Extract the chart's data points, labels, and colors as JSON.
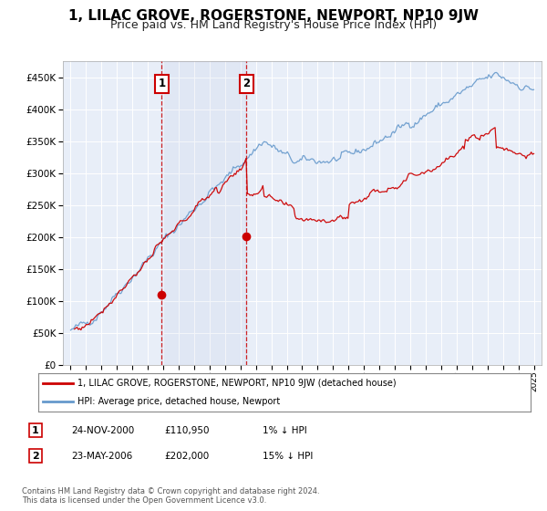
{
  "title": "1, LILAC GROVE, ROGERSTONE, NEWPORT, NP10 9JW",
  "subtitle": "Price paid vs. HM Land Registry's House Price Index (HPI)",
  "title_fontsize": 11,
  "subtitle_fontsize": 9,
  "bg_color": "#ffffff",
  "plot_bg_color": "#e8eef8",
  "grid_color": "#ffffff",
  "hpi_color": "#6699cc",
  "price_color": "#cc0000",
  "purchase1_date_num": 2000.9,
  "purchase2_date_num": 2006.38,
  "purchase1_price": 110950,
  "purchase2_price": 202000,
  "legend_entry1": "1, LILAC GROVE, ROGERSTONE, NEWPORT, NP10 9JW (detached house)",
  "legend_entry2": "HPI: Average price, detached house, Newport",
  "table_row1": [
    "1",
    "24-NOV-2000",
    "£110,950",
    "1% ↓ HPI"
  ],
  "table_row2": [
    "2",
    "23-MAY-2006",
    "£202,000",
    "15% ↓ HPI"
  ],
  "footnote": "Contains HM Land Registry data © Crown copyright and database right 2024.\nThis data is licensed under the Open Government Licence v3.0.",
  "ylim": [
    0,
    475000
  ],
  "yticks": [
    0,
    50000,
    100000,
    150000,
    200000,
    250000,
    300000,
    350000,
    400000,
    450000
  ],
  "xmin": 1994.5,
  "xmax": 2025.5
}
